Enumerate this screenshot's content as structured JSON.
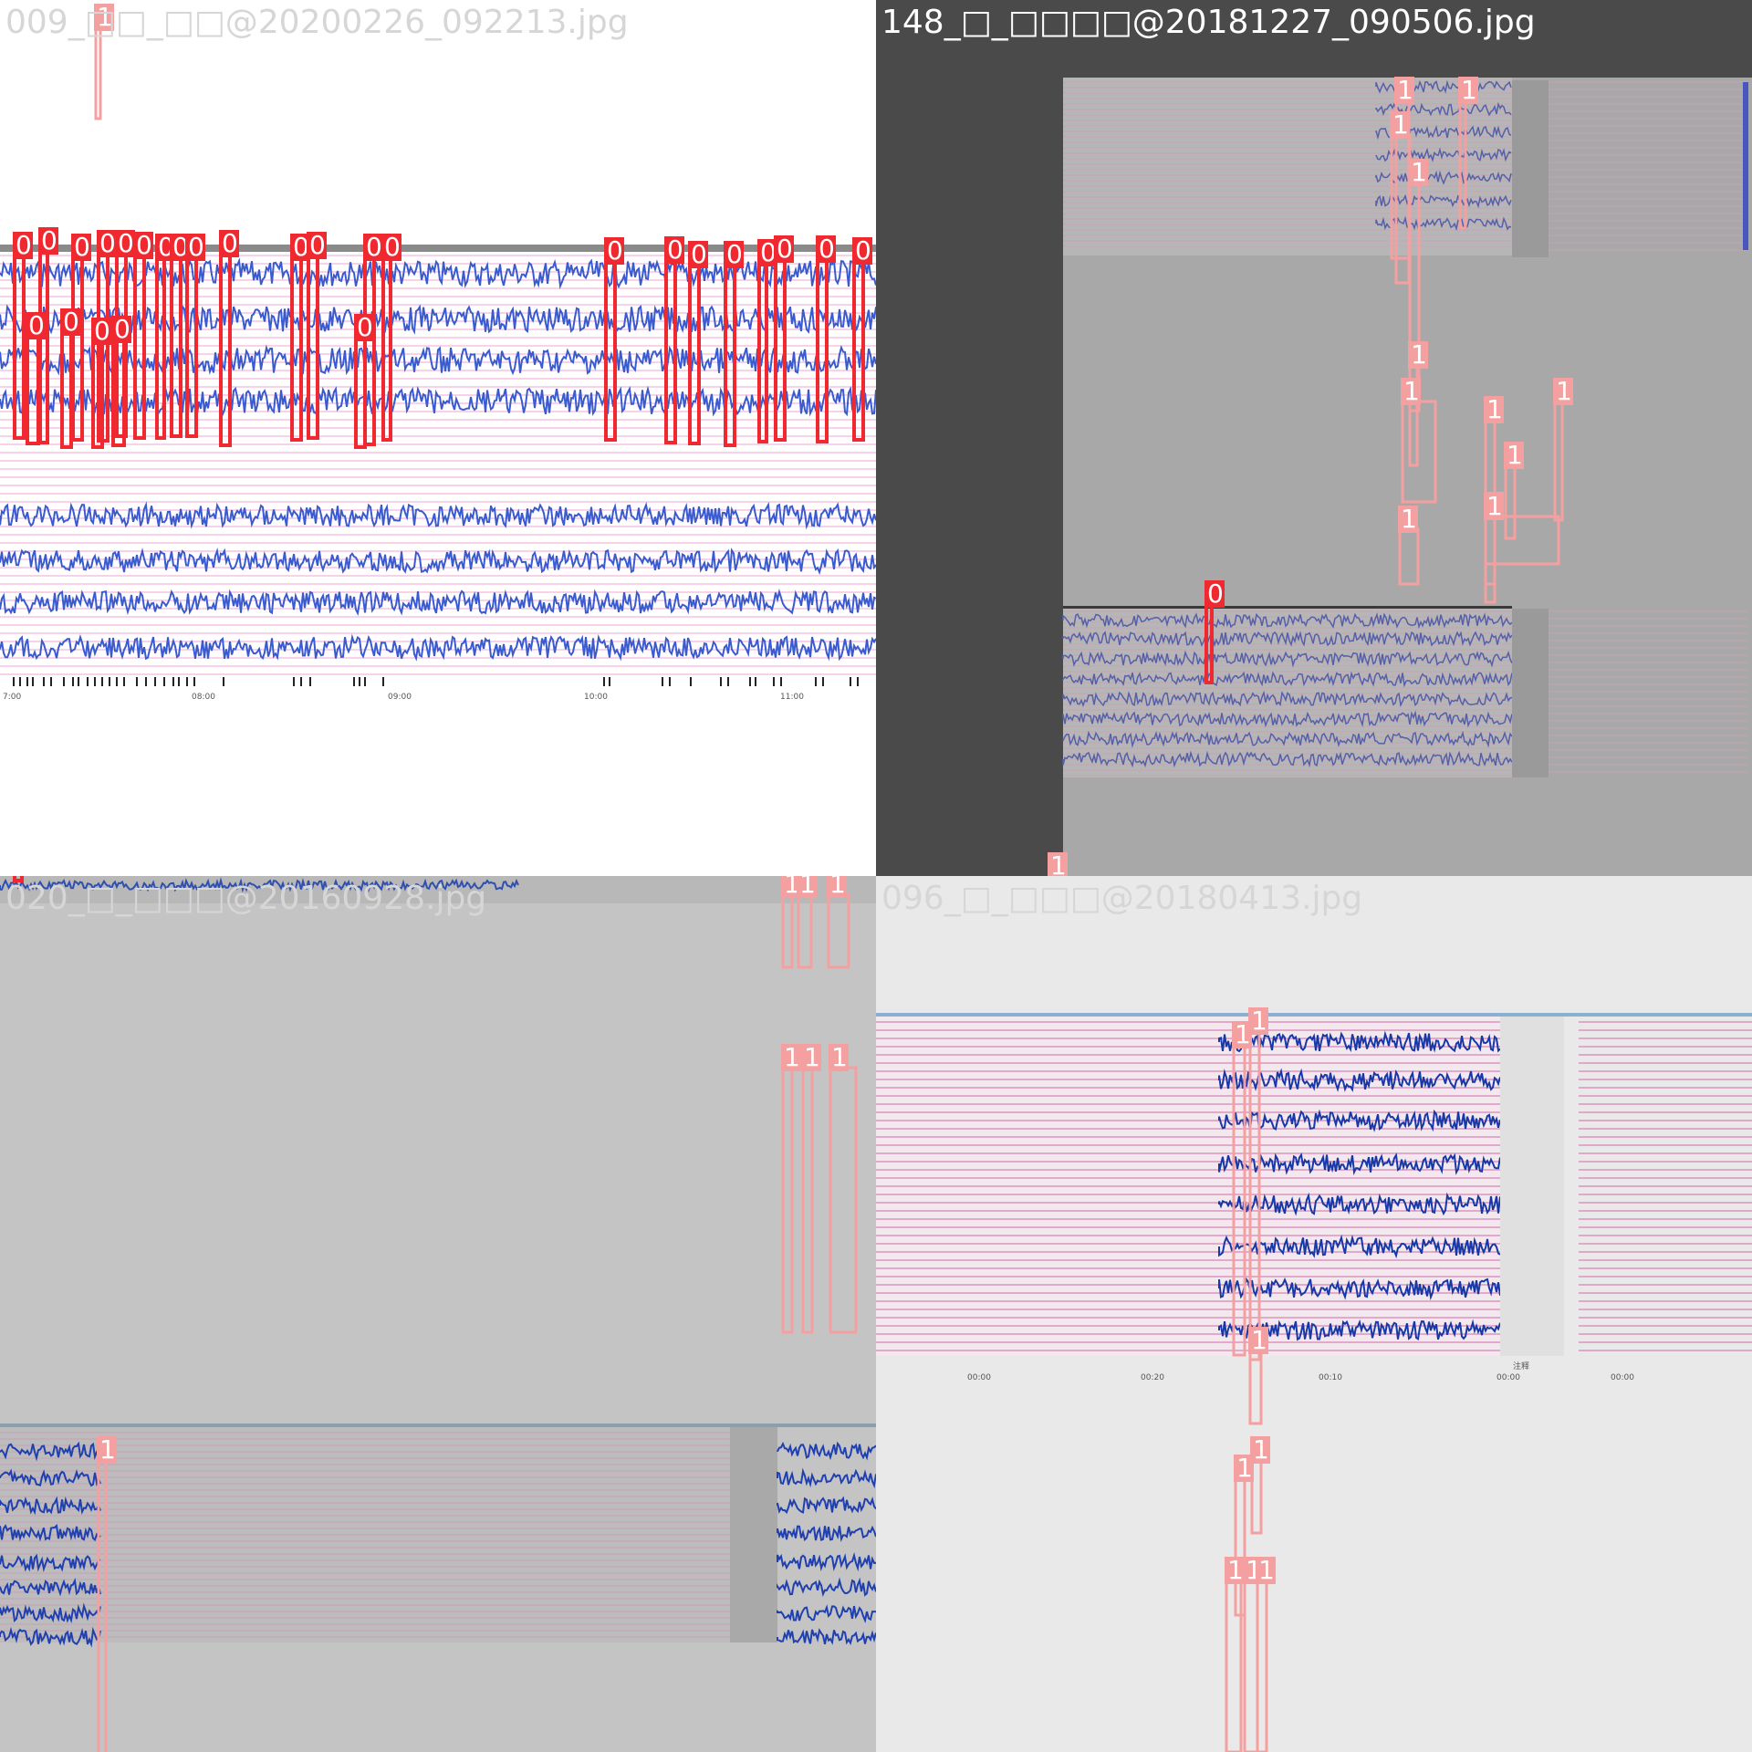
{
  "panels": {
    "top_left": {
      "filename": "009_□□_□□@20200226_092213.jpg",
      "time_axis": [
        "7:00",
        "08:00",
        "09:00",
        "10:00",
        "11:00"
      ]
    },
    "top_right": {
      "filename": "148_□_□□□□@20181227_090506.jpg"
    },
    "bottom_left": {
      "filename": "020_□_□□□@20160928.jpg"
    },
    "bottom_right": {
      "filename": "096_□_□□□@20180413.jpg",
      "time_axis": [
        "00:00",
        "00:20",
        "00:10",
        "00:00",
        "00:00"
      ],
      "footer_label": "注释"
    }
  },
  "box_labels": {
    "class_0": "0",
    "class_1": "1"
  },
  "colors": {
    "class_0": "#f0282f",
    "class_1": "#f5a0a0",
    "signal": "#3a5bd0",
    "grid": "#f0a6d6"
  }
}
